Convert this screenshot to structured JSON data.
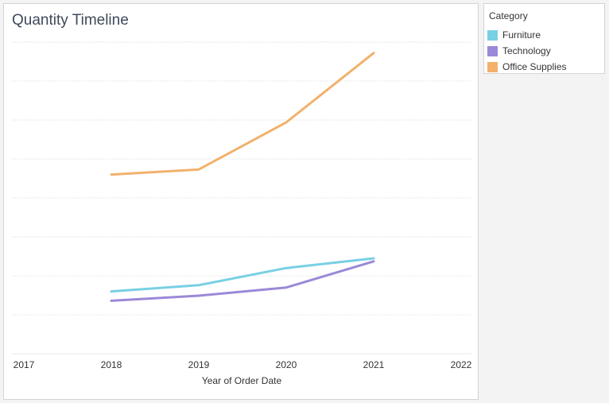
{
  "chart_data": {
    "type": "line",
    "title": "Quantity Timeline",
    "xlabel": "Year of Order Date",
    "ylabel": "",
    "x": [
      2018,
      2019,
      2020,
      2021
    ],
    "x_ticks": [
      "2017",
      "2018",
      "2019",
      "2020",
      "2021",
      "2022"
    ],
    "xlim": [
      2017,
      2022
    ],
    "ylim": [
      0,
      8
    ],
    "grid": true,
    "legend_position": "right",
    "legend_title": "Category",
    "series": [
      {
        "name": "Furniture",
        "color": "#78d0e3",
        "values": [
          1.6,
          1.76,
          2.2,
          2.45
        ]
      },
      {
        "name": "Technology",
        "color": "#9b89d8",
        "values": [
          1.36,
          1.49,
          1.7,
          2.37
        ]
      },
      {
        "name": "Office Supplies",
        "color": "#f2b16c",
        "values": [
          4.6,
          4.73,
          5.94,
          7.72
        ]
      }
    ]
  }
}
